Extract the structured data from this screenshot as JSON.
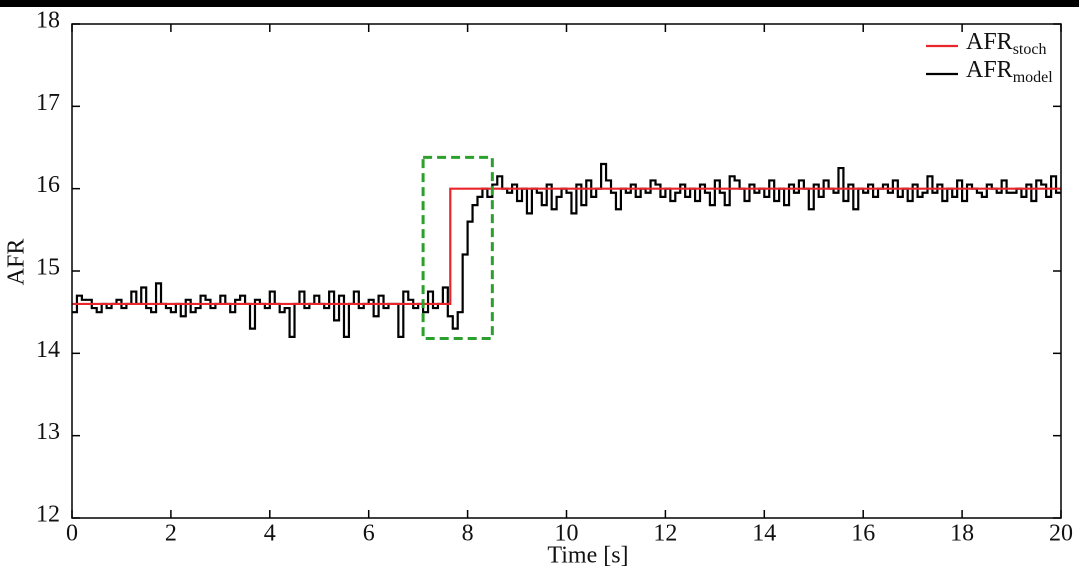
{
  "chart_data": {
    "type": "line",
    "drawstyle": "steps-post",
    "x_label": "Time [s]",
    "y_label": "AFR",
    "xlim": [
      0,
      20
    ],
    "ylim": [
      12,
      18
    ],
    "xticks": [
      0,
      2,
      4,
      6,
      8,
      10,
      12,
      14,
      16,
      18,
      20
    ],
    "yticks": [
      12,
      13,
      14,
      15,
      16,
      17,
      18
    ],
    "grid": false,
    "legend": "upper right",
    "highlight": {
      "xlim": [
        7.1,
        8.5
      ],
      "ylim": [
        14.18,
        16.38
      ],
      "color": "#2ca02c"
    },
    "series": [
      {
        "name": "AFR",
        "name_subscript": "stoch",
        "color": "#e8262b",
        "x": [
          0,
          7.65,
          20
        ],
        "values": [
          14.6,
          16,
          16
        ]
      },
      {
        "name": "AFR",
        "name_subscript": "model",
        "color": "#000000",
        "x": [
          0,
          0.1,
          0.2,
          0.3,
          0.4,
          0.5,
          0.6,
          0.7,
          0.8,
          0.9,
          1,
          1.1,
          1.2,
          1.3,
          1.4,
          1.5,
          1.6,
          1.7,
          1.8,
          1.9,
          2,
          2.1,
          2.2,
          2.3,
          2.4,
          2.5,
          2.6,
          2.7,
          2.8,
          2.9,
          3,
          3.1,
          3.2,
          3.3,
          3.4,
          3.5,
          3.6,
          3.7,
          3.8,
          3.9,
          4,
          4.1,
          4.2,
          4.3,
          4.4,
          4.5,
          4.6,
          4.7,
          4.8,
          4.9,
          5,
          5.1,
          5.2,
          5.3,
          5.4,
          5.5,
          5.6,
          5.7,
          5.8,
          5.9,
          6,
          6.1,
          6.2,
          6.3,
          6.4,
          6.5,
          6.6,
          6.7,
          6.8,
          6.9,
          7,
          7.1,
          7.2,
          7.3,
          7.4,
          7.5,
          7.6,
          7.7,
          7.8,
          7.9,
          8,
          8.1,
          8.2,
          8.3,
          8.4,
          8.5,
          8.6,
          8.7,
          8.8,
          8.9,
          9,
          9.1,
          9.2,
          9.3,
          9.4,
          9.5,
          9.6,
          9.7,
          9.8,
          9.9,
          10,
          10.1,
          10.2,
          10.3,
          10.4,
          10.5,
          10.6,
          10.7,
          10.8,
          10.9,
          11,
          11.1,
          11.2,
          11.3,
          11.4,
          11.5,
          11.6,
          11.7,
          11.8,
          11.9,
          12,
          12.1,
          12.2,
          12.3,
          12.4,
          12.5,
          12.6,
          12.7,
          12.8,
          12.9,
          13,
          13.1,
          13.2,
          13.3,
          13.4,
          13.5,
          13.6,
          13.7,
          13.8,
          13.9,
          14,
          14.1,
          14.2,
          14.3,
          14.4,
          14.5,
          14.6,
          14.7,
          14.8,
          14.9,
          15,
          15.1,
          15.2,
          15.3,
          15.4,
          15.5,
          15.6,
          15.7,
          15.8,
          15.9,
          16,
          16.1,
          16.2,
          16.3,
          16.4,
          16.5,
          16.6,
          16.7,
          16.8,
          16.9,
          17,
          17.1,
          17.2,
          17.3,
          17.4,
          17.5,
          17.6,
          17.7,
          17.8,
          17.9,
          18,
          18.1,
          18.2,
          18.3,
          18.4,
          18.5,
          18.6,
          18.7,
          18.8,
          18.9,
          19,
          19.1,
          19.2,
          19.3,
          19.4,
          19.5,
          19.6,
          19.7,
          19.8,
          19.9,
          20
        ],
        "values": [
          14.5,
          14.7,
          14.65,
          14.65,
          14.55,
          14.5,
          14.6,
          14.55,
          14.6,
          14.65,
          14.55,
          14.6,
          14.75,
          14.6,
          14.8,
          14.55,
          14.5,
          14.85,
          14.6,
          14.55,
          14.5,
          14.6,
          14.45,
          14.65,
          14.5,
          14.55,
          14.7,
          14.65,
          14.55,
          14.6,
          14.7,
          14.6,
          14.5,
          14.65,
          14.7,
          14.6,
          14.3,
          14.65,
          14.6,
          14.55,
          14.75,
          14.6,
          14.5,
          14.55,
          14.2,
          14.6,
          14.75,
          14.55,
          14.6,
          14.7,
          14.6,
          14.55,
          14.75,
          14.4,
          14.7,
          14.2,
          14.6,
          14.75,
          14.55,
          14.6,
          14.65,
          14.45,
          14.7,
          14.55,
          14.6,
          14.6,
          14.2,
          14.75,
          14.65,
          14.55,
          14.6,
          14.5,
          14.75,
          14.55,
          14.6,
          14.8,
          14.45,
          14.3,
          14.5,
          15.2,
          15.6,
          15.8,
          15.9,
          16.0,
          15.9,
          16.05,
          16.15,
          16.0,
          15.95,
          16.05,
          15.85,
          16.0,
          15.7,
          16.0,
          15.95,
          15.8,
          16.05,
          15.75,
          15.9,
          16.0,
          15.95,
          15.7,
          16.05,
          15.8,
          16.1,
          15.9,
          16.0,
          16.3,
          16.1,
          15.95,
          15.75,
          16.0,
          15.95,
          16.05,
          15.9,
          16.0,
          15.95,
          16.1,
          16.05,
          15.9,
          16.0,
          15.85,
          15.95,
          16.05,
          15.9,
          16.0,
          15.85,
          16.05,
          15.95,
          15.8,
          16.1,
          15.95,
          15.8,
          16.15,
          16.1,
          16.0,
          15.85,
          16.05,
          15.95,
          16.0,
          15.9,
          16.1,
          15.85,
          16.0,
          15.8,
          16.05,
          15.95,
          16.1,
          16.0,
          15.75,
          16.05,
          15.9,
          16.1,
          16.0,
          15.95,
          16.25,
          15.85,
          16.05,
          15.75,
          16.0,
          15.95,
          16.05,
          15.9,
          16.0,
          16.05,
          15.95,
          16.1,
          15.9,
          16.0,
          15.85,
          16.05,
          15.9,
          15.95,
          16.15,
          15.95,
          16.05,
          15.85,
          16.0,
          15.9,
          16.1,
          15.85,
          16.05,
          16.0,
          15.95,
          15.9,
          16.05,
          16.0,
          15.95,
          16.1,
          15.95,
          15.95,
          16.0,
          15.9,
          16.05,
          15.85,
          16.1,
          16.05,
          15.9,
          16.15,
          15.95,
          15.95
        ]
      }
    ]
  }
}
